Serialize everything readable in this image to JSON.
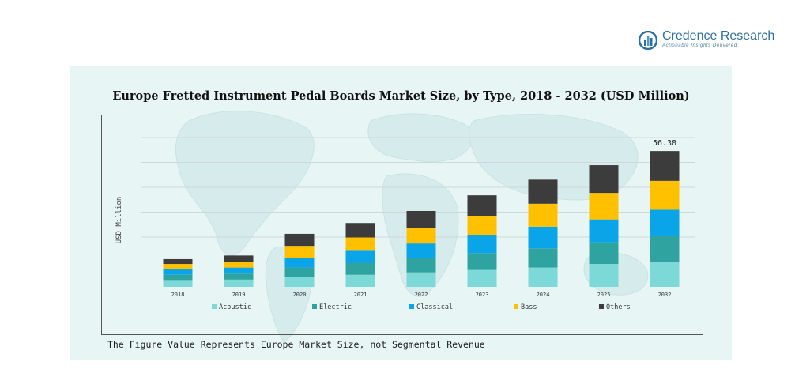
{
  "brand": {
    "name": "Credence Research",
    "tagline": "Actionable Insights Delivered"
  },
  "footnote": "The Figure Value Represents Europe Market Size, not Segmental Revenue",
  "colors": {
    "panel_bg": "#e8f5f5",
    "acoustic": "#7dd8d8",
    "electric": "#2fa3a0",
    "classical": "#0aa5e8",
    "bass": "#ffc000",
    "others": "#3c3c3c"
  },
  "chart_data": {
    "type": "bar",
    "stacked": true,
    "title": "Europe Fretted Instrument Pedal Boards Market Size, by Type, 2018 - 2032 (USD Million)",
    "xlabel": "",
    "ylabel": "USD Million",
    "ylim": [
      0,
      62
    ],
    "grid": true,
    "legend": "bottom",
    "categories": [
      "2018",
      "2019",
      "2020",
      "2021",
      "2022",
      "2023",
      "2024",
      "2025",
      "2032"
    ],
    "series": [
      {
        "name": "Acoustic",
        "values": [
          2.5,
          3.0,
          4.0,
          5.0,
          6.0,
          7.0,
          8.0,
          9.5,
          10.5
        ]
      },
      {
        "name": "Electric",
        "values": [
          2.5,
          2.5,
          4.0,
          5.0,
          6.0,
          7.0,
          8.0,
          9.0,
          10.5
        ]
      },
      {
        "name": "Classical",
        "values": [
          2.5,
          2.5,
          4.0,
          5.0,
          6.0,
          7.5,
          9.0,
          9.5,
          11.0
        ]
      },
      {
        "name": "Bass",
        "values": [
          2.0,
          2.5,
          5.0,
          5.5,
          6.5,
          8.0,
          9.5,
          11.0,
          12.0
        ]
      },
      {
        "name": "Others",
        "values": [
          2.0,
          2.5,
          5.0,
          6.0,
          7.0,
          8.5,
          10.0,
          11.5,
          12.38
        ]
      }
    ],
    "annotations": [
      {
        "category": "2032",
        "text": "56.38"
      }
    ]
  }
}
